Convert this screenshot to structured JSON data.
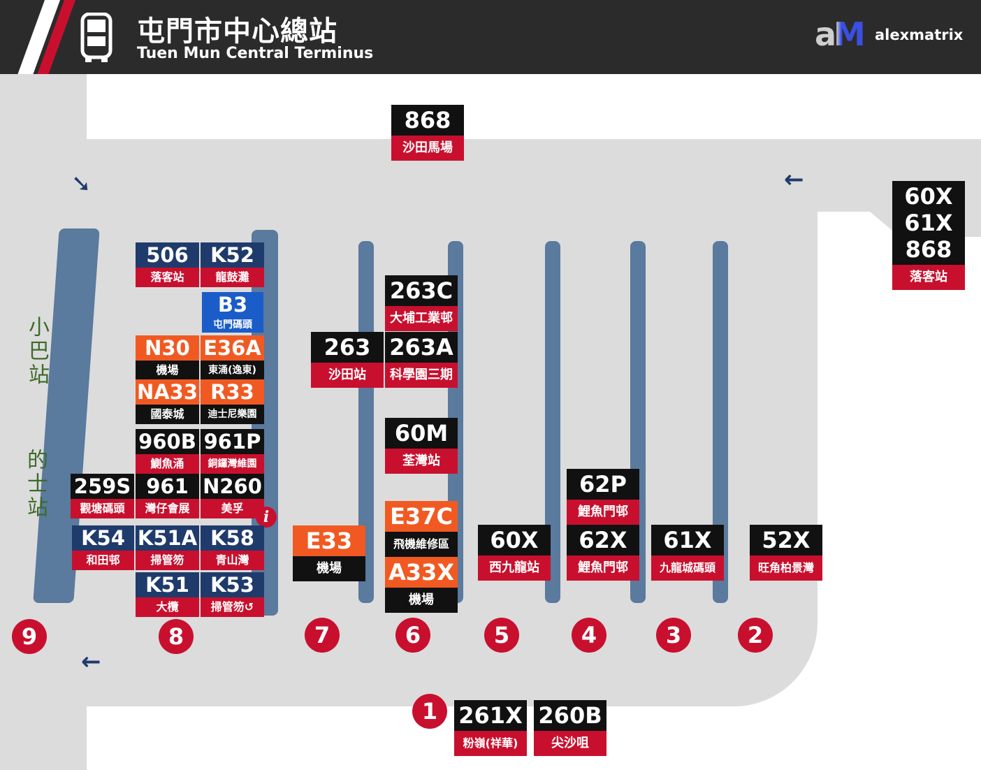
{
  "header": {
    "title_zh": "屯門市中心總站",
    "title_en": "Tuen Mun Central Terminus",
    "logo_mark": "aM",
    "logo_text": "alexmatrix",
    "bg": "#2b2b2b",
    "icon": "bus-icon"
  },
  "colors": {
    "red": "#c8102e",
    "navy": "#1f3b6b",
    "orange": "#f05a22",
    "blue": "#1a5cc8",
    "road": "#dcdcdc",
    "island": "#5a7a9e"
  },
  "labels": {
    "minibus": "小巴站",
    "taxi": "的士站"
  },
  "info_icon": "i",
  "bays": [
    "1",
    "2",
    "3",
    "4",
    "5",
    "6",
    "7",
    "8",
    "9"
  ],
  "arrows": [
    "➘",
    "←",
    "←"
  ],
  "routes": {
    "r868_top": {
      "num": "868",
      "dest": "沙田馬場"
    },
    "r60x61x868": {
      "num1": "60X",
      "num2": "61X",
      "num3": "868",
      "dest": "落客站"
    },
    "r506": {
      "num": "506",
      "dest": "落客站"
    },
    "rK52": {
      "num": "K52",
      "dest": "龍鼓灘"
    },
    "rB3": {
      "num": "B3",
      "dest": "屯門碼頭"
    },
    "rN30": {
      "num": "N30",
      "dest": "機場"
    },
    "rE36A": {
      "num": "E36A",
      "dest": "東涌(逸東)"
    },
    "rNA33": {
      "num": "NA33",
      "dest": "國泰城"
    },
    "rR33": {
      "num": "R33",
      "dest": "迪士尼樂園"
    },
    "r960B": {
      "num": "960B",
      "dest": "鰂魚涌"
    },
    "r961P": {
      "num": "961P",
      "dest": "銅鑼灣維園"
    },
    "r259S": {
      "num": "259S",
      "dest": "觀塘碼頭"
    },
    "r961": {
      "num": "961",
      "dest": "灣仔會展"
    },
    "rN260": {
      "num": "N260",
      "dest": "美孚"
    },
    "rK54": {
      "num": "K54",
      "dest": "和田邨"
    },
    "rK51A": {
      "num": "K51A",
      "dest": "掃管笏"
    },
    "rK58": {
      "num": "K58",
      "dest": "青山灣"
    },
    "rK51": {
      "num": "K51",
      "dest": "大欖"
    },
    "rK53": {
      "num": "K53",
      "dest": "掃管笏↺"
    },
    "rE33": {
      "num": "E33",
      "dest": "機場"
    },
    "r263C": {
      "num": "263C",
      "dest": "大埔工業邨"
    },
    "r263": {
      "num": "263",
      "dest": "沙田站"
    },
    "r263A": {
      "num": "263A",
      "dest": "科學園三期"
    },
    "r60M": {
      "num": "60M",
      "dest": "荃灣站"
    },
    "rE37C": {
      "num": "E37C",
      "dest": "飛機維修區"
    },
    "rA33X": {
      "num": "A33X",
      "dest": "機場"
    },
    "r60X": {
      "num": "60X",
      "dest": "西九龍站"
    },
    "r62P": {
      "num": "62P",
      "dest": "鯉魚門邨"
    },
    "r62X": {
      "num": "62X",
      "dest": "鯉魚門邨"
    },
    "r61X": {
      "num": "61X",
      "dest": "九龍城碼頭"
    },
    "r52X": {
      "num": "52X",
      "dest": "旺角柏景灣"
    },
    "r261X": {
      "num": "261X",
      "dest": "粉嶺(祥華)"
    },
    "r260B": {
      "num": "260B",
      "dest": "尖沙咀"
    }
  }
}
